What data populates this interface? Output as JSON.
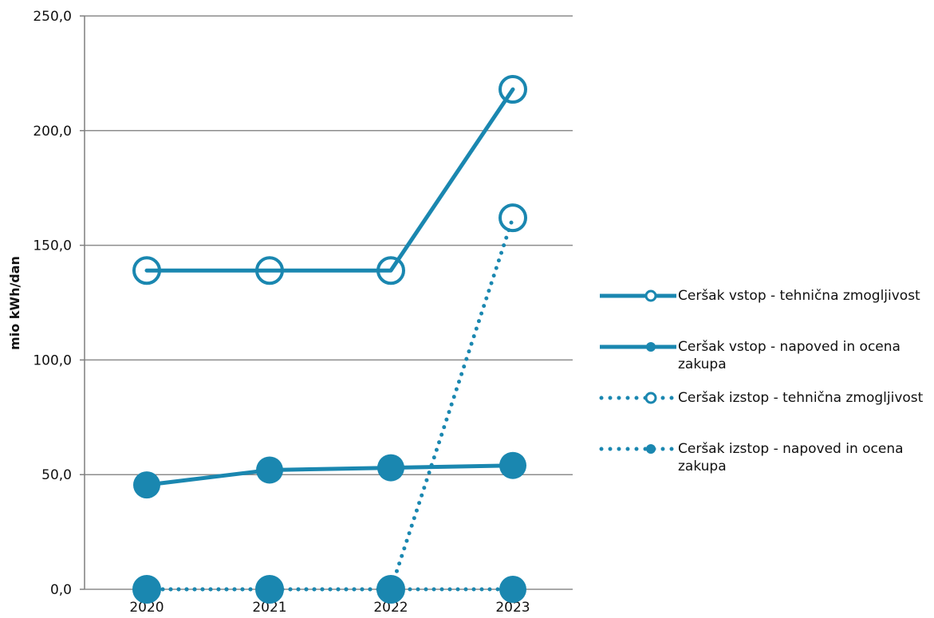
{
  "chart_data": {
    "type": "line",
    "title": "",
    "xlabel": "",
    "ylabel": "mio kWh/dan",
    "categories": [
      "2020",
      "2021",
      "2022",
      "2023"
    ],
    "ylim": [
      0,
      250
    ],
    "yticks": [
      "0,0",
      "50,0",
      "100,0",
      "150,0",
      "200,0",
      "250,0"
    ],
    "ytick_values": [
      0,
      50,
      100,
      150,
      200,
      250
    ],
    "grid": "horizontal",
    "legend_position": "right",
    "series": [
      {
        "name": "Ceršak vstop - tehnična zmogljivost",
        "values": [
          139,
          139,
          139,
          218
        ],
        "line": "solid",
        "marker": "open-circle",
        "color": "#1a87b0"
      },
      {
        "name": "Ceršak vstop - napoved in ocena zakupa",
        "values": [
          45.5,
          52,
          53,
          54
        ],
        "line": "solid",
        "marker": "filled-circle",
        "color": "#1a87b0"
      },
      {
        "name": "Ceršak izstop - tehnična zmogljivost",
        "values": [
          0,
          0,
          0,
          162
        ],
        "line": "dotted",
        "marker": "open-circle",
        "color": "#1a87b0"
      },
      {
        "name": "Ceršak izstop - napoved in ocena zakupa",
        "values": [
          0,
          0,
          0,
          0
        ],
        "line": "dotted",
        "marker": "filled-circle",
        "color": "#1a87b0"
      }
    ]
  }
}
